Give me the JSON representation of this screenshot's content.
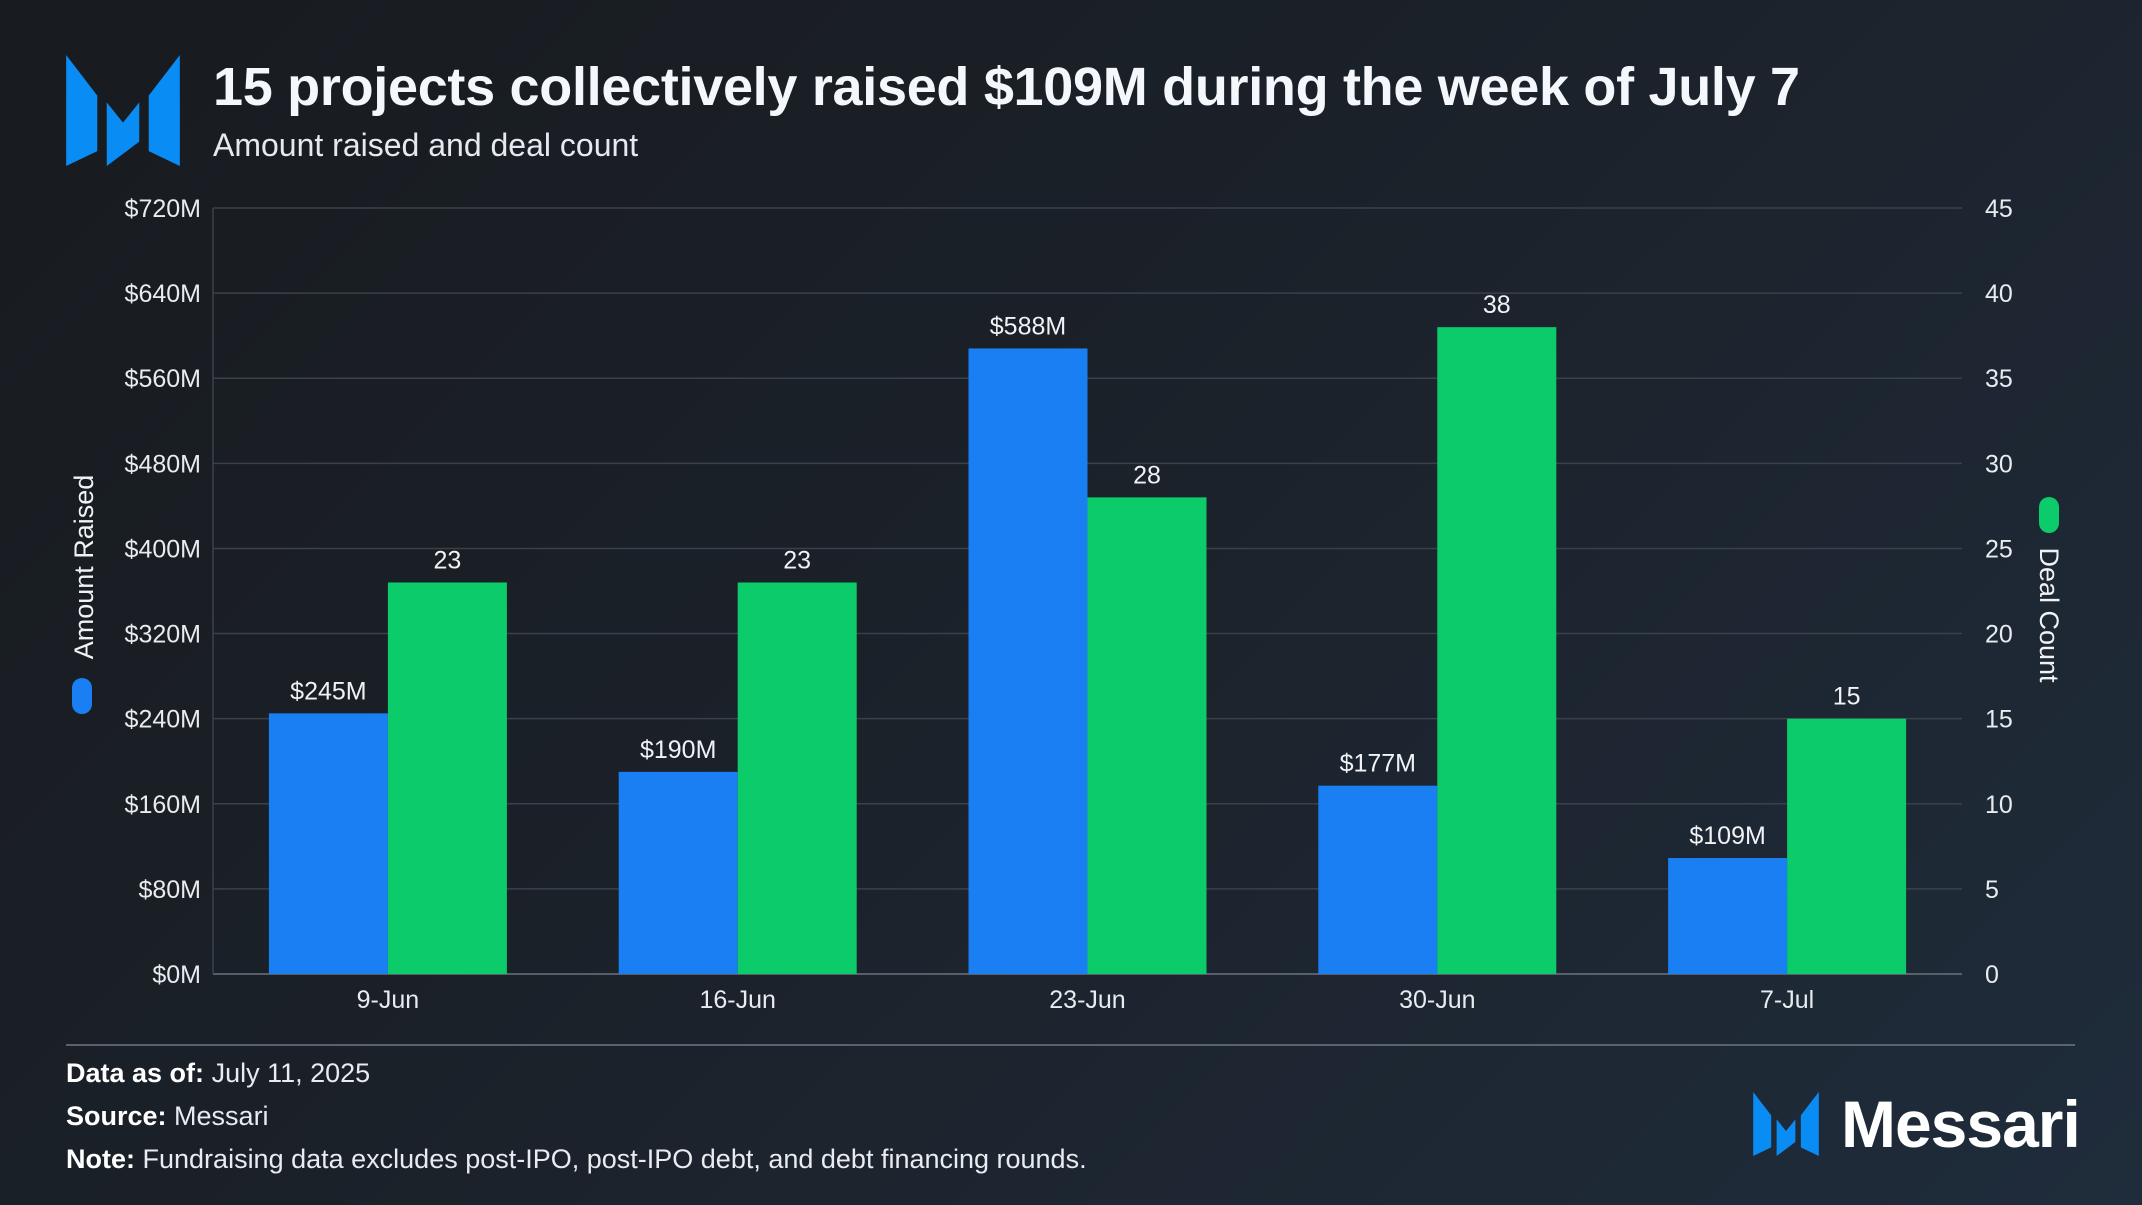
{
  "header": {
    "title": "15 projects collectively raised $109M during the week of July 7",
    "subtitle": "Amount raised and deal count",
    "logo_icon": "messari-m-logo-icon"
  },
  "chart_data": {
    "type": "bar",
    "categories": [
      "9-Jun",
      "16-Jun",
      "23-Jun",
      "30-Jun",
      "7-Jul"
    ],
    "series": [
      {
        "name": "Amount Raised",
        "axis": "left",
        "color": "#1a7ff2",
        "values": [
          245,
          190,
          588,
          177,
          109
        ],
        "data_labels": [
          "$245M",
          "$190M",
          "$588M",
          "$177M",
          "$109M"
        ]
      },
      {
        "name": "Deal Count",
        "axis": "right",
        "color": "#0bcb6b",
        "values": [
          23,
          23,
          28,
          38,
          15
        ],
        "data_labels": [
          "23",
          "23",
          "28",
          "38",
          "15"
        ]
      }
    ],
    "y_left": {
      "label": "Amount Raised",
      "unit": "$M",
      "range": [
        0,
        720
      ],
      "ticks": [
        "$0M",
        "$80M",
        "$160M",
        "$240M",
        "$320M",
        "$400M",
        "$480M",
        "$560M",
        "$640M",
        "$720M"
      ]
    },
    "y_right": {
      "label": "Deal Count",
      "range": [
        0,
        45
      ],
      "ticks": [
        "0",
        "5",
        "10",
        "15",
        "20",
        "25",
        "30",
        "35",
        "40",
        "45"
      ]
    },
    "grid": true,
    "legend": "axis-labels"
  },
  "footer": {
    "data_as_of_label": "Data as of:",
    "data_as_of": "July 11, 2025",
    "source_label": "Source:",
    "source": "Messari",
    "note_label": "Note:",
    "note": "Fundraising data excludes post-IPO, post-IPO debt, and debt financing rounds.",
    "brand": "Messari"
  }
}
